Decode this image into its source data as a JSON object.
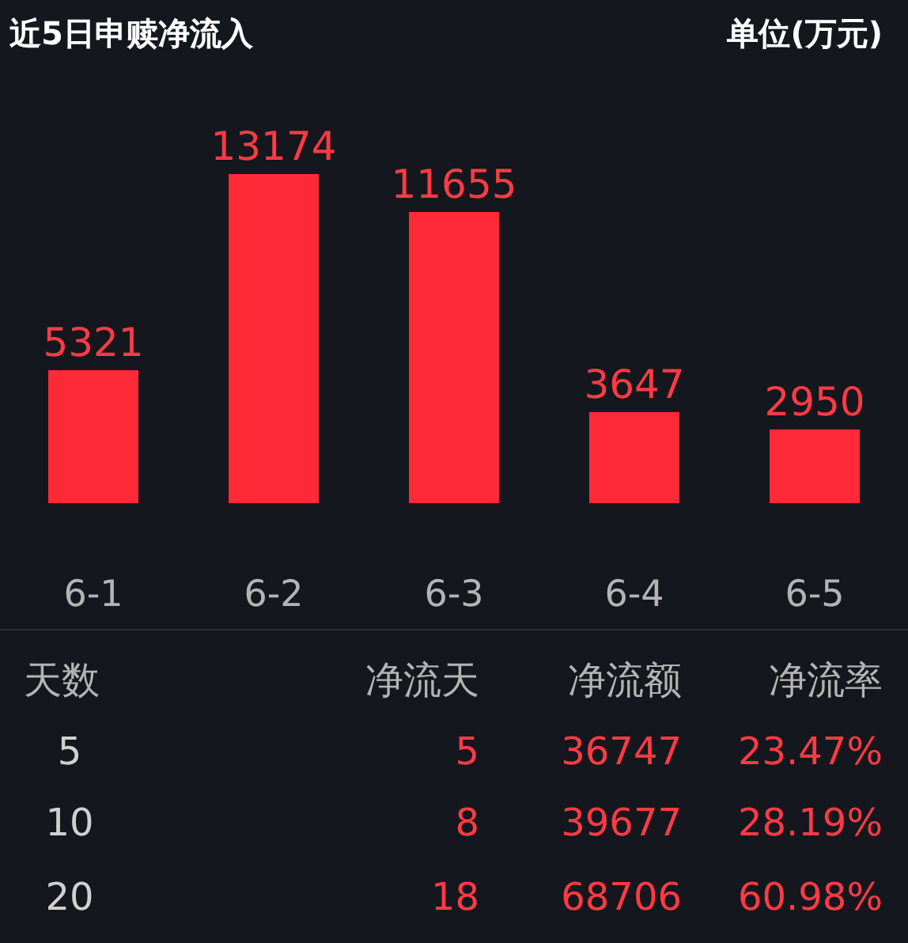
{
  "chart_data": [
    {
      "type": "bar",
      "title": "近5日申赎净流入",
      "subtitle": "单位(万元)",
      "categories": [
        "6-1",
        "6-2",
        "6-3",
        "6-4",
        "6-5"
      ],
      "values": [
        5321,
        13174,
        11655,
        3647,
        2950
      ],
      "color": "#ff2a38",
      "data_labels": true
    },
    {
      "type": "other",
      "annotations": [
        "天数",
        "净流天",
        "净流额",
        "净流率",
        "5",
        "5",
        "36747",
        "23.47%",
        "10",
        "8",
        "39677",
        "28.19%",
        "20",
        "18",
        "68706",
        "60.98%"
      ]
    }
  ]
}
